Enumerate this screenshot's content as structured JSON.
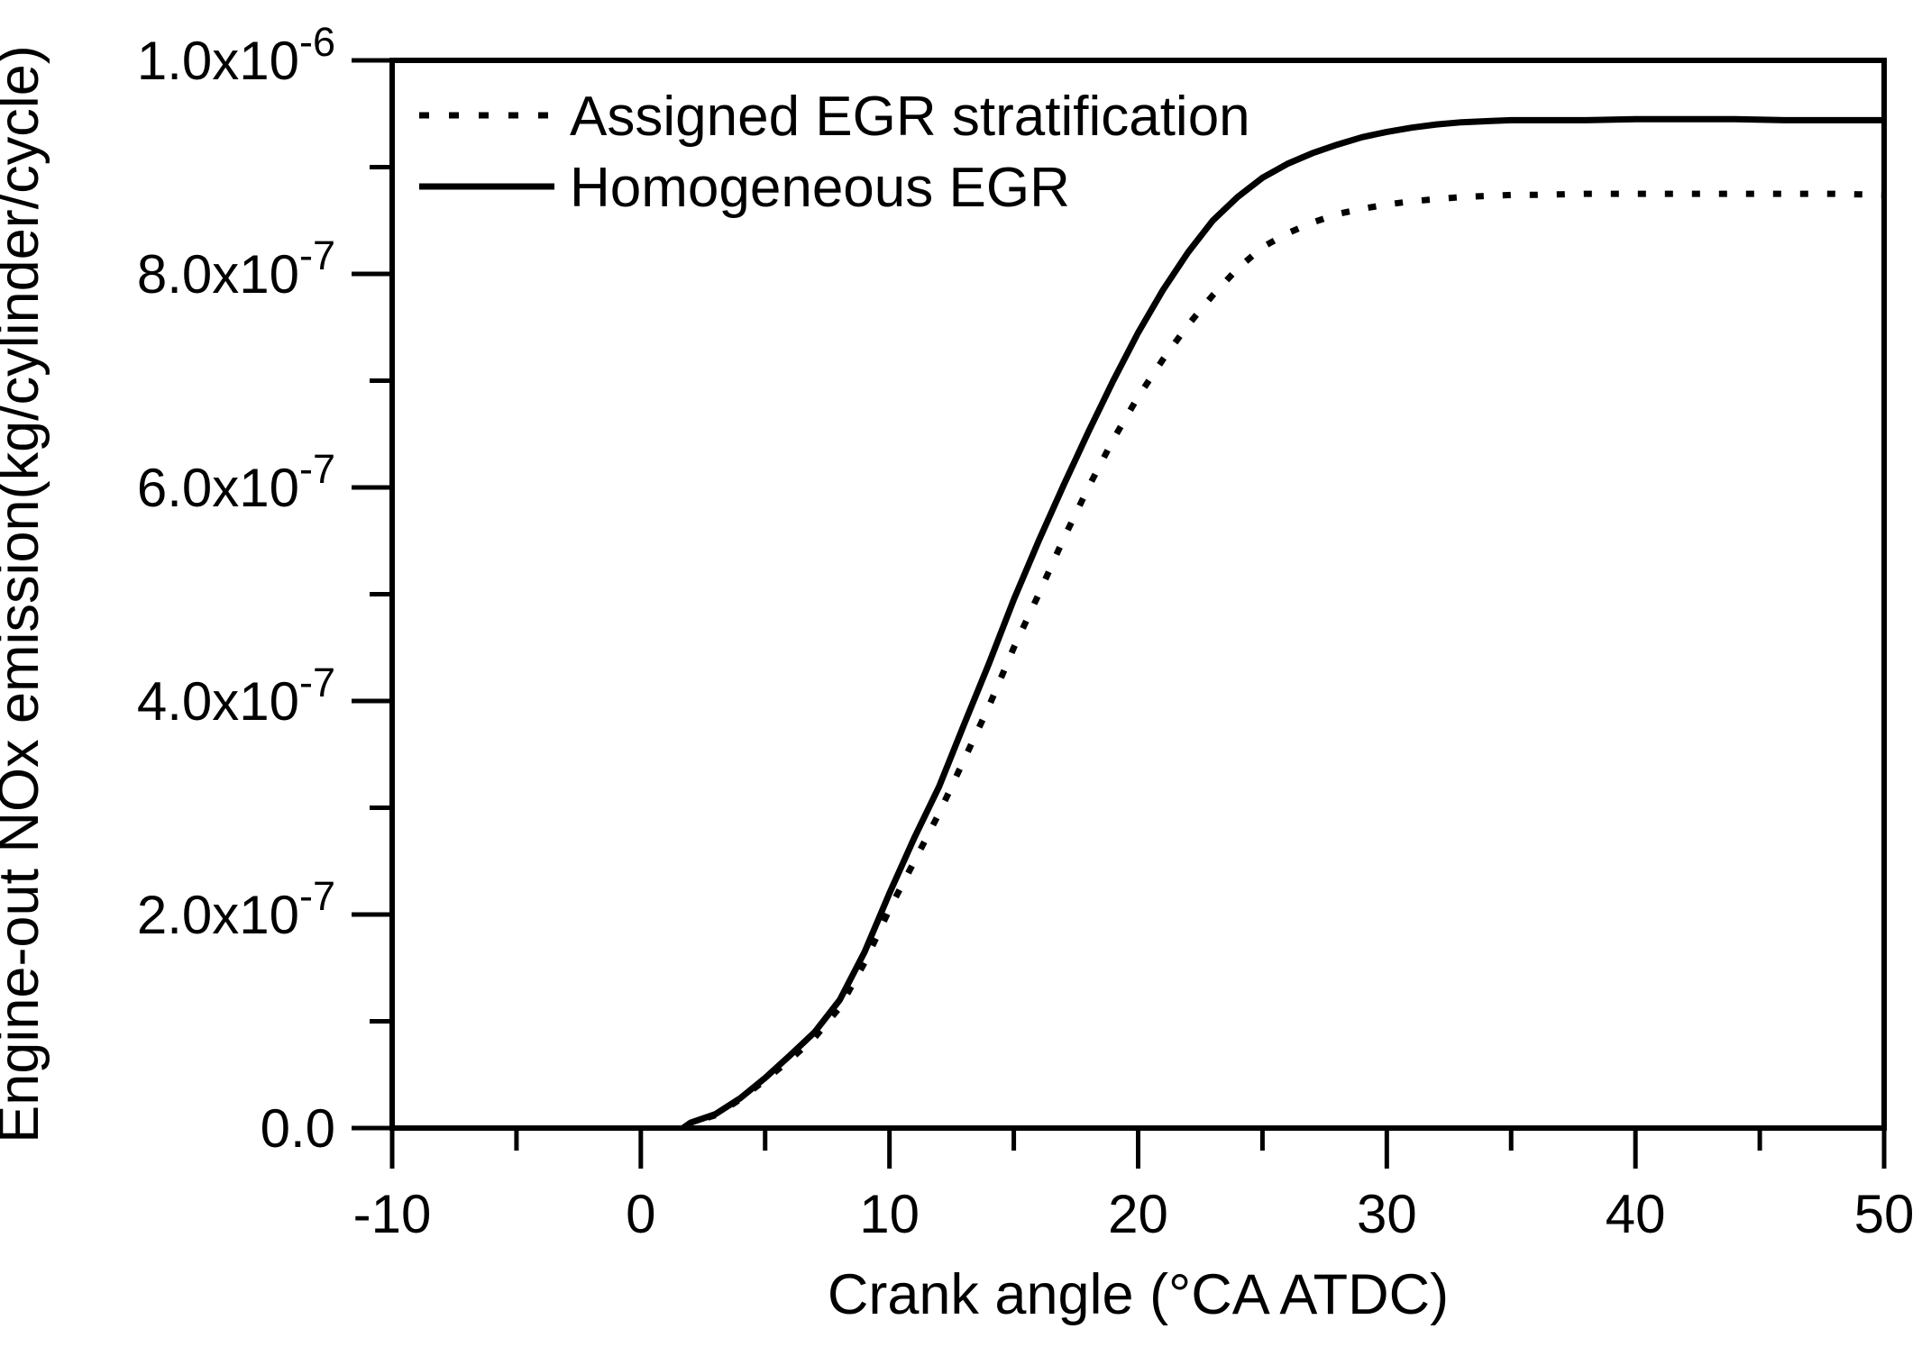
{
  "figure": {
    "background_color": "#ffffff",
    "ink_color": "#000000"
  },
  "y_axis": {
    "title": "Engine-out NOx emission(kg/cylinder/cycle)",
    "ticks": [
      {
        "base": "0.0",
        "exp": "",
        "value_e7": 0
      },
      {
        "base": "2.0x10",
        "exp": "-7",
        "value_e7": 2
      },
      {
        "base": "4.0x10",
        "exp": "-7",
        "value_e7": 4
      },
      {
        "base": "6.0x10",
        "exp": "-7",
        "value_e7": 6
      },
      {
        "base": "8.0x10",
        "exp": "-7",
        "value_e7": 8
      },
      {
        "base": "1.0x10",
        "exp": "-6",
        "value_e7": 10
      }
    ],
    "minor_values_e7": [
      1,
      3,
      5,
      7,
      9
    ]
  },
  "x_axis": {
    "title": "Crank angle (°CA ATDC)",
    "ticks": [
      {
        "label": "-10",
        "value": -10
      },
      {
        "label": "0",
        "value": 0
      },
      {
        "label": "10",
        "value": 10
      },
      {
        "label": "20",
        "value": 20
      },
      {
        "label": "30",
        "value": 30
      },
      {
        "label": "40",
        "value": 40
      },
      {
        "label": "50",
        "value": 50
      }
    ],
    "minor_values": [
      -5,
      5,
      15,
      25,
      35,
      45
    ]
  },
  "legend": {
    "position": "top-left-inside",
    "items": [
      {
        "label": "Assigned EGR stratification",
        "style": "dotted"
      },
      {
        "label": "Homogeneous EGR",
        "style": "solid"
      }
    ]
  },
  "chart_data": {
    "type": "line",
    "title": "",
    "xlabel": "Crank angle (°CA ATDC)",
    "ylabel": "Engine-out NOx emission(kg/cylinder/cycle)",
    "xlim": [
      -10,
      50
    ],
    "ylim_kg_per_cyl_cycle": [
      0,
      1e-06
    ],
    "y_values_unit": "1e-7 kg/cylinder/cycle",
    "grid": false,
    "legend_position": "top-left",
    "x": [
      1.7,
      2,
      3,
      4,
      5,
      6,
      7,
      8,
      9,
      10,
      11,
      12,
      13,
      14,
      15,
      16,
      17,
      18,
      19,
      20,
      21,
      22,
      23,
      24,
      25,
      26,
      27,
      28,
      29,
      30,
      31,
      32,
      33,
      34,
      35,
      36,
      38,
      40,
      42,
      44,
      46,
      48,
      50
    ],
    "series": [
      {
        "name": "Assigned EGR stratification",
        "style": "dotted",
        "y_e7": [
          0,
          0.05,
          0.12,
          0.27,
          0.45,
          0.64,
          0.85,
          1.13,
          1.55,
          2.05,
          2.5,
          2.95,
          3.45,
          3.95,
          4.5,
          5.0,
          5.52,
          6.0,
          6.45,
          6.85,
          7.2,
          7.52,
          7.8,
          8.05,
          8.25,
          8.38,
          8.48,
          8.56,
          8.61,
          8.65,
          8.68,
          8.7,
          8.72,
          8.73,
          8.74,
          8.74,
          8.75,
          8.75,
          8.75,
          8.75,
          8.75,
          8.75,
          8.74
        ]
      },
      {
        "name": "Homogeneous EGR",
        "style": "solid",
        "y_e7": [
          0,
          0.05,
          0.13,
          0.28,
          0.47,
          0.68,
          0.9,
          1.2,
          1.65,
          2.2,
          2.72,
          3.2,
          3.78,
          4.35,
          4.95,
          5.5,
          6.02,
          6.52,
          7.0,
          7.45,
          7.85,
          8.2,
          8.5,
          8.72,
          8.9,
          9.03,
          9.13,
          9.21,
          9.28,
          9.33,
          9.37,
          9.4,
          9.42,
          9.43,
          9.44,
          9.44,
          9.44,
          9.45,
          9.45,
          9.45,
          9.44,
          9.44,
          9.44
        ]
      }
    ]
  }
}
